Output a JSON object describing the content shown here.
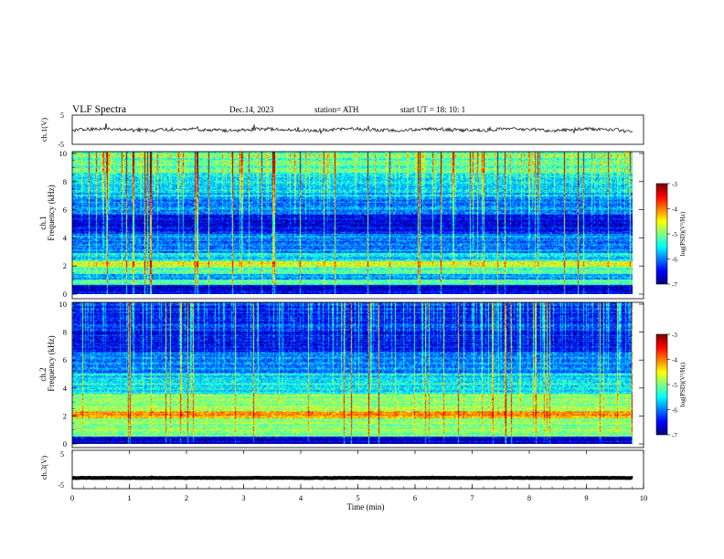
{
  "header": {
    "title": "VLF  Spectra",
    "date": "Dec.14, 2023",
    "station": "station= ATH",
    "start": "start  UT  =   18: 10: 1"
  },
  "chart_data": [
    {
      "type": "line",
      "panel": "ch1-waveform",
      "ylabel": "ch.1(V)",
      "ylim": [
        -5,
        5
      ],
      "yticks": [
        "5",
        "-5"
      ],
      "xlim": [
        0,
        10
      ],
      "series": [
        {
          "baseline": 0.0,
          "amplitude": 0.6
        }
      ]
    },
    {
      "type": "heatmap",
      "panel": "ch1-spectrogram",
      "ylabel_top": "ch.1",
      "ylabel": "Frequency (kHz)",
      "ylim": [
        0,
        10
      ],
      "yticks": [
        "0",
        "2",
        "4",
        "6",
        "8",
        "10"
      ],
      "xlim": [
        0,
        9.8
      ],
      "colorbar": {
        "label": "log(PSD)(V²/Hz)",
        "range": [
          -7,
          -3
        ],
        "ticks": [
          "-3",
          "-4",
          "-5",
          "-6",
          "-7"
        ]
      },
      "bands": [
        {
          "from": 0.0,
          "to": 0.6,
          "level": -6.7
        },
        {
          "from": 0.6,
          "to": 1.0,
          "level": -5.0
        },
        {
          "from": 1.0,
          "to": 1.4,
          "level": -5.9
        },
        {
          "from": 1.4,
          "to": 1.9,
          "level": -5.2
        },
        {
          "from": 1.9,
          "to": 2.3,
          "level": -4.6
        },
        {
          "from": 2.3,
          "to": 2.9,
          "level": -5.6
        },
        {
          "from": 2.9,
          "to": 4.2,
          "level": -6.0
        },
        {
          "from": 4.2,
          "to": 5.6,
          "level": -6.5
        },
        {
          "from": 5.6,
          "to": 6.8,
          "level": -6.0
        },
        {
          "from": 6.8,
          "to": 8.5,
          "level": -5.7
        },
        {
          "from": 8.5,
          "to": 10.0,
          "level": -5.2
        }
      ]
    },
    {
      "type": "heatmap",
      "panel": "ch2-spectrogram",
      "ylabel_top": "ch.2",
      "ylabel": "Frequency (kHz)",
      "ylim": [
        0,
        10
      ],
      "yticks": [
        "0",
        "2",
        "4",
        "6",
        "8",
        "10"
      ],
      "xlim": [
        0,
        9.8
      ],
      "colorbar": {
        "label": "log(PSD)(V²/Hz)",
        "range": [
          -7,
          -3
        ],
        "ticks": [
          "-3",
          "-4",
          "-5",
          "-6",
          "-7"
        ]
      },
      "bands": [
        {
          "from": 0.0,
          "to": 0.5,
          "level": -6.7
        },
        {
          "from": 0.5,
          "to": 1.8,
          "level": -5.0
        },
        {
          "from": 1.8,
          "to": 2.3,
          "level": -4.2
        },
        {
          "from": 2.3,
          "to": 3.5,
          "level": -4.9
        },
        {
          "from": 3.5,
          "to": 5.0,
          "level": -5.6
        },
        {
          "from": 5.0,
          "to": 6.5,
          "level": -6.0
        },
        {
          "from": 6.5,
          "to": 8.0,
          "level": -6.5
        },
        {
          "from": 8.0,
          "to": 10.0,
          "level": -6.4
        }
      ]
    },
    {
      "type": "line",
      "panel": "ch3-waveform",
      "ylabel": "ch.3(V)",
      "ylim": [
        -5,
        5
      ],
      "yticks": [
        "5",
        "-5"
      ],
      "xlim": [
        0,
        10
      ],
      "xlabel": "Time  (min)",
      "xticks": [
        "0",
        "1",
        "2",
        "3",
        "4",
        "5",
        "6",
        "7",
        "8",
        "9",
        "10"
      ],
      "series": [
        {
          "baseline": -2.2,
          "amplitude": 0.05
        }
      ]
    }
  ]
}
